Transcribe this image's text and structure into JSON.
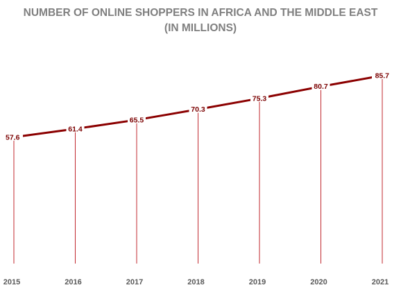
{
  "chart_data": {
    "type": "line",
    "title_line1": "NUMBER OF ONLINE SHOPPERS IN AFRICA AND THE MIDDLE EAST",
    "title_line2": "(IN MILLIONS)",
    "categories": [
      "2015",
      "2016",
      "2017",
      "2018",
      "2019",
      "2020",
      "2021"
    ],
    "series": [
      {
        "values": [
          57.6,
          61.4,
          65.5,
          70.3,
          75.3,
          80.7,
          85.7
        ],
        "labels": [
          "57.6",
          "61.4",
          "65.5",
          "70.3",
          "75.3",
          "80.7",
          "85.7"
        ]
      }
    ],
    "ylim": [
      0,
      98
    ],
    "grid": false,
    "drop_lines": true,
    "legend": "none",
    "colors": {
      "line": "#8b0000",
      "drop_line": "#c0272d",
      "value_label": "#7b0000",
      "tick_label": "#595959",
      "title": "#7f7f7f"
    }
  }
}
